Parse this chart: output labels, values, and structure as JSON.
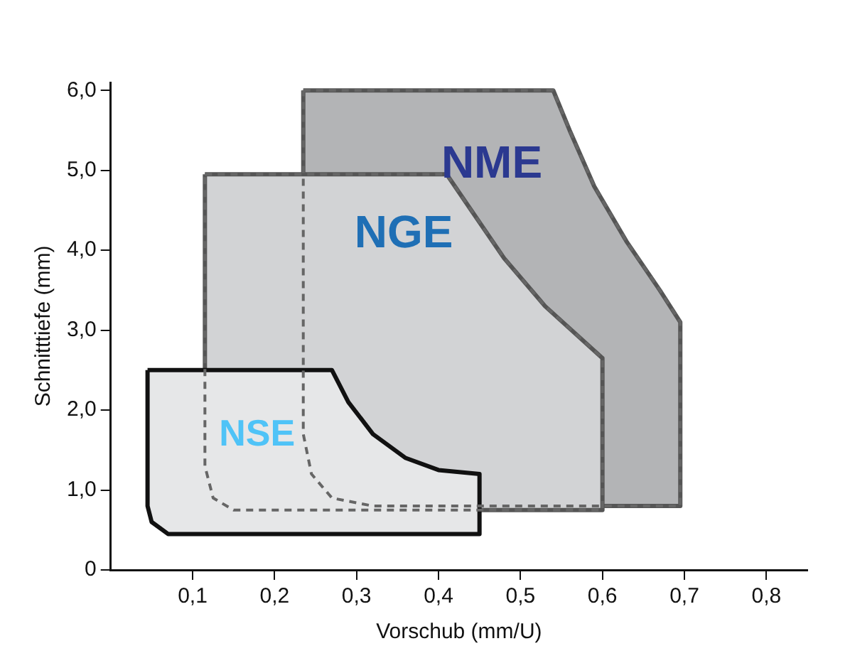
{
  "chart_data": {
    "type": "area",
    "xlabel": "Vorschub (mm/U)",
    "ylabel": "Schnitttiefe (mm)",
    "xlim": [
      0,
      0.85
    ],
    "ylim": [
      0,
      6.1
    ],
    "xticks": [
      {
        "value": 0.1,
        "label": "0,1"
      },
      {
        "value": 0.2,
        "label": "0,2"
      },
      {
        "value": 0.3,
        "label": "0,3"
      },
      {
        "value": 0.4,
        "label": "0,4"
      },
      {
        "value": 0.5,
        "label": "0,5"
      },
      {
        "value": 0.6,
        "label": "0,6"
      },
      {
        "value": 0.7,
        "label": "0,7"
      },
      {
        "value": 0.8,
        "label": "0,8"
      }
    ],
    "yticks": [
      0,
      {
        "value": 1,
        "label": "1,0"
      },
      {
        "value": 2,
        "label": "2,0"
      },
      {
        "value": 3,
        "label": "3,0"
      },
      {
        "value": 4,
        "label": "4,0"
      },
      {
        "value": 5,
        "label": "5,0"
      },
      {
        "value": 6,
        "label": "6,0"
      }
    ],
    "grid": false,
    "legend": false,
    "marker": "none",
    "series": [
      {
        "name": "NME",
        "color": "#b3b4b6",
        "x": [
          0.235,
          0.54,
          0.56,
          0.59,
          0.63,
          0.67,
          0.695,
          0.695,
          0.32,
          0.27,
          0.245,
          0.235,
          0.235
        ],
        "values": [
          6.0,
          6.0,
          5.5,
          4.8,
          4.1,
          3.5,
          3.1,
          0.8,
          0.8,
          0.9,
          1.2,
          1.7,
          6.0
        ]
      },
      {
        "name": "NGE",
        "color": "#d2d3d5",
        "x": [
          0.115,
          0.41,
          0.44,
          0.48,
          0.53,
          0.6,
          0.6,
          0.15,
          0.125,
          0.115,
          0.115
        ],
        "values": [
          4.95,
          4.95,
          4.5,
          3.9,
          3.3,
          2.65,
          0.75,
          0.75,
          0.9,
          1.3,
          4.95
        ]
      },
      {
        "name": "NSE",
        "color": "#e6e7e8",
        "x": [
          0.045,
          0.27,
          0.29,
          0.32,
          0.36,
          0.4,
          0.45,
          0.45,
          0.07,
          0.05,
          0.045,
          0.045
        ],
        "values": [
          2.5,
          2.5,
          2.1,
          1.7,
          1.4,
          1.25,
          1.2,
          0.45,
          0.45,
          0.6,
          0.8,
          2.5
        ]
      }
    ]
  }
}
